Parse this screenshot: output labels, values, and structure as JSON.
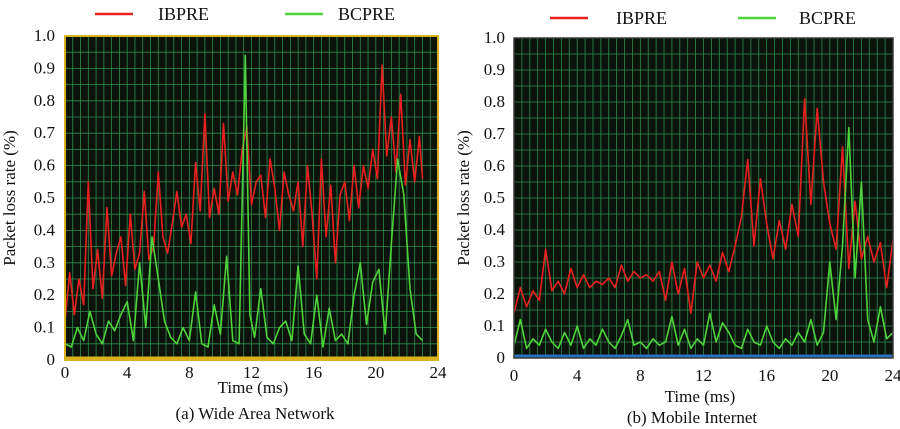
{
  "chart_data": [
    {
      "type": "line",
      "caption": "(a) Wide Area Network",
      "xlabel": "Time (ms)",
      "ylabel": "Packet loss rate (%)",
      "xlim": [
        0,
        24
      ],
      "ylim": [
        0,
        1.0
      ],
      "xticks": [
        "0",
        "4",
        "8",
        "12",
        "16",
        "20",
        "24"
      ],
      "yticks": [
        "0",
        "0.1",
        "0.2",
        "0.3",
        "0.4",
        "0.5",
        "0.6",
        "0.7",
        "0.8",
        "0.9",
        "1.0"
      ],
      "grid": true,
      "legend_position": "top",
      "colors": {
        "background": "#0b130b",
        "grid": "#2f8c4e",
        "frame": "#d9b21e",
        "baseline": "#d9b21e"
      },
      "series": [
        {
          "name": "IBPRE",
          "color": "#e82020",
          "x": [
            0,
            0.3,
            0.6,
            0.9,
            1.2,
            1.5,
            1.8,
            2.1,
            2.4,
            2.7,
            3.0,
            3.3,
            3.6,
            3.9,
            4.2,
            4.5,
            4.8,
            5.1,
            5.4,
            5.7,
            6.0,
            6.3,
            6.6,
            6.9,
            7.2,
            7.5,
            7.8,
            8.1,
            8.4,
            8.7,
            9.0,
            9.3,
            9.6,
            9.9,
            10.2,
            10.5,
            10.8,
            11.1,
            11.4,
            11.7,
            12.0,
            12.3,
            12.6,
            12.9,
            13.2,
            13.5,
            13.8,
            14.1,
            14.4,
            14.7,
            15.0,
            15.3,
            15.6,
            15.9,
            16.2,
            16.5,
            16.8,
            17.1,
            17.4,
            17.7,
            18.0,
            18.3,
            18.6,
            18.9,
            19.2,
            19.5,
            19.8,
            20.1,
            20.4,
            20.7,
            21.0,
            21.3,
            21.6,
            21.9,
            22.2,
            22.5,
            22.8,
            23.0
          ],
          "y": [
            0.12,
            0.27,
            0.14,
            0.25,
            0.17,
            0.55,
            0.22,
            0.34,
            0.19,
            0.47,
            0.26,
            0.33,
            0.38,
            0.23,
            0.45,
            0.28,
            0.33,
            0.52,
            0.31,
            0.35,
            0.58,
            0.38,
            0.33,
            0.42,
            0.52,
            0.41,
            0.45,
            0.36,
            0.61,
            0.46,
            0.76,
            0.44,
            0.53,
            0.45,
            0.73,
            0.49,
            0.58,
            0.51,
            0.65,
            0.72,
            0.48,
            0.55,
            0.57,
            0.44,
            0.62,
            0.53,
            0.4,
            0.58,
            0.51,
            0.46,
            0.55,
            0.35,
            0.6,
            0.45,
            0.25,
            0.62,
            0.38,
            0.54,
            0.3,
            0.51,
            0.55,
            0.43,
            0.6,
            0.47,
            0.6,
            0.53,
            0.65,
            0.56,
            0.91,
            0.63,
            0.75,
            0.58,
            0.82,
            0.54,
            0.68,
            0.55,
            0.69,
            0.56
          ]
        },
        {
          "name": "BCPRE",
          "color": "#4fd33a",
          "x": [
            0,
            0.4,
            0.8,
            1.2,
            1.6,
            2.0,
            2.4,
            2.8,
            3.2,
            3.6,
            4.0,
            4.4,
            4.8,
            5.2,
            5.6,
            6.0,
            6.4,
            6.8,
            7.2,
            7.6,
            8.0,
            8.4,
            8.8,
            9.2,
            9.6,
            10.0,
            10.4,
            10.8,
            11.2,
            11.6,
            11.9,
            12.2,
            12.6,
            13.0,
            13.4,
            13.8,
            14.2,
            14.6,
            15.0,
            15.4,
            15.8,
            16.2,
            16.6,
            17.0,
            17.4,
            17.8,
            18.2,
            18.6,
            19.0,
            19.4,
            19.8,
            20.2,
            20.6,
            21.0,
            21.4,
            21.8,
            22.2,
            22.6,
            23.0
          ],
          "y": [
            0.05,
            0.04,
            0.1,
            0.06,
            0.15,
            0.08,
            0.05,
            0.12,
            0.09,
            0.14,
            0.18,
            0.06,
            0.3,
            0.1,
            0.38,
            0.25,
            0.12,
            0.07,
            0.05,
            0.1,
            0.06,
            0.21,
            0.05,
            0.04,
            0.17,
            0.08,
            0.32,
            0.06,
            0.05,
            0.94,
            0.14,
            0.07,
            0.22,
            0.07,
            0.05,
            0.1,
            0.12,
            0.06,
            0.29,
            0.08,
            0.05,
            0.2,
            0.04,
            0.16,
            0.06,
            0.08,
            0.05,
            0.2,
            0.3,
            0.11,
            0.24,
            0.28,
            0.08,
            0.36,
            0.62,
            0.51,
            0.22,
            0.08,
            0.06
          ]
        }
      ]
    },
    {
      "type": "line",
      "caption": "(b) Mobile Internet",
      "xlabel": "Time (ms)",
      "ylabel": "Packet loss rate (%)",
      "xlim": [
        0,
        24
      ],
      "ylim": [
        0,
        1.0
      ],
      "xticks": [
        "0",
        "4",
        "8",
        "12",
        "16",
        "20",
        "24"
      ],
      "yticks": [
        "0",
        "0.1",
        "0.2",
        "0.3",
        "0.4",
        "0.5",
        "0.6",
        "0.7",
        "0.8",
        "0.9",
        "1.0"
      ],
      "grid": true,
      "legend_position": "top",
      "colors": {
        "background": "#0b130b",
        "grid": "#2f8c4e",
        "frame": "#3a3a3a",
        "baseline": "#2a6fc0"
      },
      "series": [
        {
          "name": "IBPRE",
          "color": "#e82020",
          "x": [
            0,
            0.4,
            0.8,
            1.2,
            1.6,
            2.0,
            2.4,
            2.8,
            3.2,
            3.6,
            4.0,
            4.4,
            4.8,
            5.2,
            5.6,
            6.0,
            6.4,
            6.8,
            7.2,
            7.6,
            8.0,
            8.4,
            8.8,
            9.2,
            9.6,
            10.0,
            10.4,
            10.8,
            11.2,
            11.6,
            12.0,
            12.4,
            12.8,
            13.2,
            13.6,
            14.0,
            14.4,
            14.8,
            15.2,
            15.6,
            16.0,
            16.4,
            16.8,
            17.2,
            17.6,
            18.0,
            18.4,
            18.8,
            19.2,
            19.6,
            20.0,
            20.4,
            20.8,
            21.2,
            21.6,
            22.0,
            22.4,
            22.8,
            23.2,
            23.6,
            24.0
          ],
          "y": [
            0.14,
            0.22,
            0.16,
            0.21,
            0.18,
            0.34,
            0.21,
            0.24,
            0.2,
            0.28,
            0.22,
            0.26,
            0.22,
            0.24,
            0.23,
            0.25,
            0.22,
            0.29,
            0.24,
            0.27,
            0.25,
            0.26,
            0.24,
            0.27,
            0.18,
            0.3,
            0.2,
            0.28,
            0.14,
            0.3,
            0.25,
            0.29,
            0.24,
            0.33,
            0.27,
            0.35,
            0.44,
            0.62,
            0.35,
            0.56,
            0.42,
            0.31,
            0.43,
            0.34,
            0.48,
            0.38,
            0.81,
            0.48,
            0.78,
            0.55,
            0.42,
            0.34,
            0.66,
            0.28,
            0.49,
            0.31,
            0.38,
            0.3,
            0.36,
            0.22,
            0.37
          ]
        },
        {
          "name": "BCPRE",
          "color": "#4fd33a",
          "x": [
            0,
            0.4,
            0.8,
            1.2,
            1.6,
            2.0,
            2.4,
            2.8,
            3.2,
            3.6,
            4.0,
            4.4,
            4.8,
            5.2,
            5.6,
            6.0,
            6.4,
            6.8,
            7.2,
            7.6,
            8.0,
            8.4,
            8.8,
            9.2,
            9.6,
            10.0,
            10.4,
            10.8,
            11.2,
            11.6,
            12.0,
            12.4,
            12.8,
            13.2,
            13.6,
            14.0,
            14.4,
            14.8,
            15.2,
            15.6,
            16.0,
            16.4,
            16.8,
            17.2,
            17.6,
            18.0,
            18.4,
            18.8,
            19.2,
            19.6,
            20.0,
            20.4,
            20.8,
            21.2,
            21.6,
            22.0,
            22.4,
            22.8,
            23.2,
            23.6,
            24.0
          ],
          "y": [
            0.04,
            0.12,
            0.03,
            0.06,
            0.04,
            0.09,
            0.05,
            0.03,
            0.08,
            0.04,
            0.1,
            0.03,
            0.06,
            0.04,
            0.09,
            0.05,
            0.03,
            0.07,
            0.12,
            0.04,
            0.05,
            0.03,
            0.06,
            0.04,
            0.05,
            0.13,
            0.04,
            0.09,
            0.03,
            0.06,
            0.04,
            0.14,
            0.05,
            0.11,
            0.08,
            0.04,
            0.03,
            0.09,
            0.05,
            0.04,
            0.1,
            0.05,
            0.03,
            0.06,
            0.04,
            0.08,
            0.05,
            0.12,
            0.04,
            0.08,
            0.3,
            0.12,
            0.35,
            0.72,
            0.25,
            0.55,
            0.12,
            0.05,
            0.16,
            0.06,
            0.08
          ]
        }
      ]
    }
  ]
}
